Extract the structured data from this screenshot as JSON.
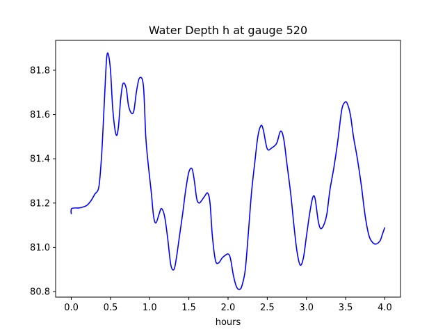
{
  "chart_data": {
    "type": "line",
    "title": "Water Depth h at gauge 520",
    "xlabel": "hours",
    "ylabel": "",
    "xlim": [
      -0.2,
      4.2
    ],
    "ylim": [
      80.775,
      81.935
    ],
    "xticks": [
      0.0,
      0.5,
      1.0,
      1.5,
      2.0,
      2.5,
      3.0,
      3.5,
      4.0
    ],
    "xtick_labels": [
      "0.0",
      "0.5",
      "1.0",
      "1.5",
      "2.0",
      "2.5",
      "3.0",
      "3.5",
      "4.0"
    ],
    "yticks": [
      80.8,
      81.0,
      81.2,
      81.4,
      81.6,
      81.8
    ],
    "ytick_labels": [
      "80.8",
      "81.0",
      "81.2",
      "81.4",
      "81.6",
      "81.8"
    ],
    "grid": false,
    "line_color": "#0000ff",
    "series": [
      {
        "x": [
          0.0,
          0.005,
          0.1,
          0.15,
          0.2,
          0.25,
          0.3,
          0.35,
          0.38,
          0.4,
          0.43,
          0.45,
          0.47,
          0.5,
          0.53,
          0.57,
          0.6,
          0.63,
          0.66,
          0.7,
          0.73,
          0.77,
          0.8,
          0.83,
          0.87,
          0.92,
          0.95,
          0.98,
          1.02,
          1.05,
          1.08,
          1.12,
          1.15,
          1.19,
          1.23,
          1.27,
          1.31,
          1.34,
          1.38,
          1.42,
          1.46,
          1.5,
          1.54,
          1.57,
          1.6,
          1.63,
          1.66,
          1.7,
          1.74,
          1.77,
          1.8,
          1.84,
          1.88,
          1.92,
          1.95,
          2.0,
          2.03,
          2.07,
          2.11,
          2.15,
          2.18,
          2.22,
          2.26,
          2.3,
          2.34,
          2.38,
          2.42,
          2.45,
          2.5,
          2.56,
          2.62,
          2.67,
          2.71,
          2.75,
          2.8,
          2.84,
          2.88,
          2.92,
          2.96,
          3.0,
          3.04,
          3.08,
          3.11,
          3.15,
          3.18,
          3.22,
          3.26,
          3.3,
          3.35,
          3.4,
          3.45,
          3.49,
          3.52,
          3.56,
          3.6,
          3.65,
          3.7,
          3.75,
          3.8,
          3.85,
          3.89,
          3.94,
          3.97,
          4.0
        ],
        "y": [
          81.15,
          81.175,
          81.178,
          81.182,
          81.19,
          81.21,
          81.24,
          81.27,
          81.38,
          81.5,
          81.72,
          81.85,
          81.875,
          81.8,
          81.62,
          81.51,
          81.54,
          81.67,
          81.74,
          81.72,
          81.64,
          81.605,
          81.62,
          81.7,
          81.765,
          81.73,
          81.5,
          81.38,
          81.25,
          81.14,
          81.11,
          81.15,
          81.175,
          81.14,
          81.04,
          80.92,
          80.9,
          80.95,
          81.05,
          81.15,
          81.26,
          81.34,
          81.355,
          81.3,
          81.22,
          81.2,
          81.21,
          81.23,
          81.245,
          81.2,
          81.05,
          80.94,
          80.93,
          80.95,
          80.96,
          80.97,
          80.95,
          80.87,
          80.82,
          80.81,
          80.83,
          80.9,
          81.07,
          81.25,
          81.38,
          81.5,
          81.55,
          81.53,
          81.445,
          81.45,
          81.47,
          81.525,
          81.49,
          81.38,
          81.24,
          81.1,
          80.98,
          80.92,
          80.95,
          81.05,
          81.15,
          81.225,
          81.22,
          81.12,
          81.085,
          81.1,
          81.15,
          81.26,
          81.36,
          81.48,
          81.62,
          81.655,
          81.65,
          81.6,
          81.5,
          81.4,
          81.28,
          81.14,
          81.05,
          81.02,
          81.015,
          81.03,
          81.06,
          81.09
        ]
      }
    ]
  }
}
